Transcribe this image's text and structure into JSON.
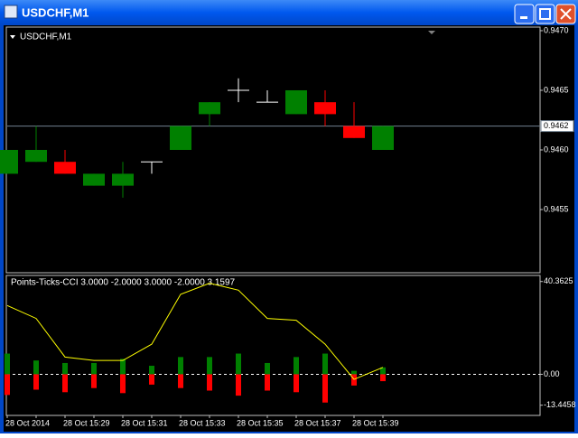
{
  "window_title": "USDCHF,M1",
  "chart_data": [
    {
      "type": "candlestick",
      "title": "USDCHF,M1",
      "open": [
        0.9458,
        0.9459,
        0.9459,
        0.9457,
        0.9457,
        0.9459,
        0.946,
        0.9463,
        0.9465,
        0.9464,
        0.9463,
        0.9464,
        0.9462,
        0.946
      ],
      "high": [
        0.946,
        0.9462,
        0.946,
        0.9458,
        0.9459,
        0.9459,
        0.9462,
        0.9464,
        0.9466,
        0.9465,
        0.9465,
        0.9465,
        0.9464,
        0.9462
      ],
      "low": [
        0.9458,
        0.9459,
        0.9458,
        0.9457,
        0.9456,
        0.9458,
        0.946,
        0.9462,
        0.9464,
        0.9464,
        0.9463,
        0.9462,
        0.9461,
        0.946
      ],
      "close": [
        0.946,
        0.946,
        0.9458,
        0.9458,
        0.9458,
        0.9459,
        0.9462,
        0.9464,
        0.9465,
        0.9464,
        0.9465,
        0.9463,
        0.9461,
        0.9462
      ],
      "up_color": "#008000",
      "down_color": "#ff0000",
      "doji_color": "#ffffff",
      "current_price": 0.9462,
      "ylim": [
        0.94497,
        0.94703
      ],
      "yticks": [
        {
          "value": 0.947,
          "label": "0.9470"
        },
        0.9465,
        {
          "value": 0.946,
          "label": "0.9460"
        },
        0.9455
      ]
    },
    {
      "type": "bar",
      "title": "Points-Ticks-CCI 3.0000 -2.0000 3.0000 -2.0000 3.1597",
      "categories": [
        "28 Oct 2014",
        null,
        "28 Oct 15:29",
        null,
        "28 Oct 15:31",
        null,
        "28 Oct 15:33",
        null,
        "28 Oct 15:35",
        null,
        "28 Oct 15:37",
        null,
        "28 Oct 15:39",
        null
      ],
      "series": [
        {
          "color": "#008000",
          "values": [
            9.0,
            6.0,
            4.9,
            4.9,
            6.7,
            3.7,
            7.5,
            7.5,
            9.0,
            4.9,
            7.5,
            9.0,
            1.5,
            3.0
          ]
        },
        {
          "color": "#ff0000",
          "values": [
            -9.0,
            -6.7,
            -7.8,
            -6.0,
            -8.2,
            -4.5,
            -6.0,
            -7.1,
            -9.3,
            -7.1,
            -7.8,
            -12.3,
            -4.9,
            -3.0
          ]
        },
        {
          "type": "line",
          "color": "#ffff00",
          "values": [
            29.9,
            24.3,
            7.5,
            6.0,
            6.0,
            13.1,
            34.8,
            39.6,
            36.6,
            24.3,
            23.5,
            13.1,
            -2.2,
            3.0
          ]
        }
      ],
      "ylim": [
        -17.9,
        43.0
      ],
      "yticks": [
        40.3625,
        {
          "value": 0,
          "label": "0.00"
        },
        -13.4458
      ]
    }
  ]
}
